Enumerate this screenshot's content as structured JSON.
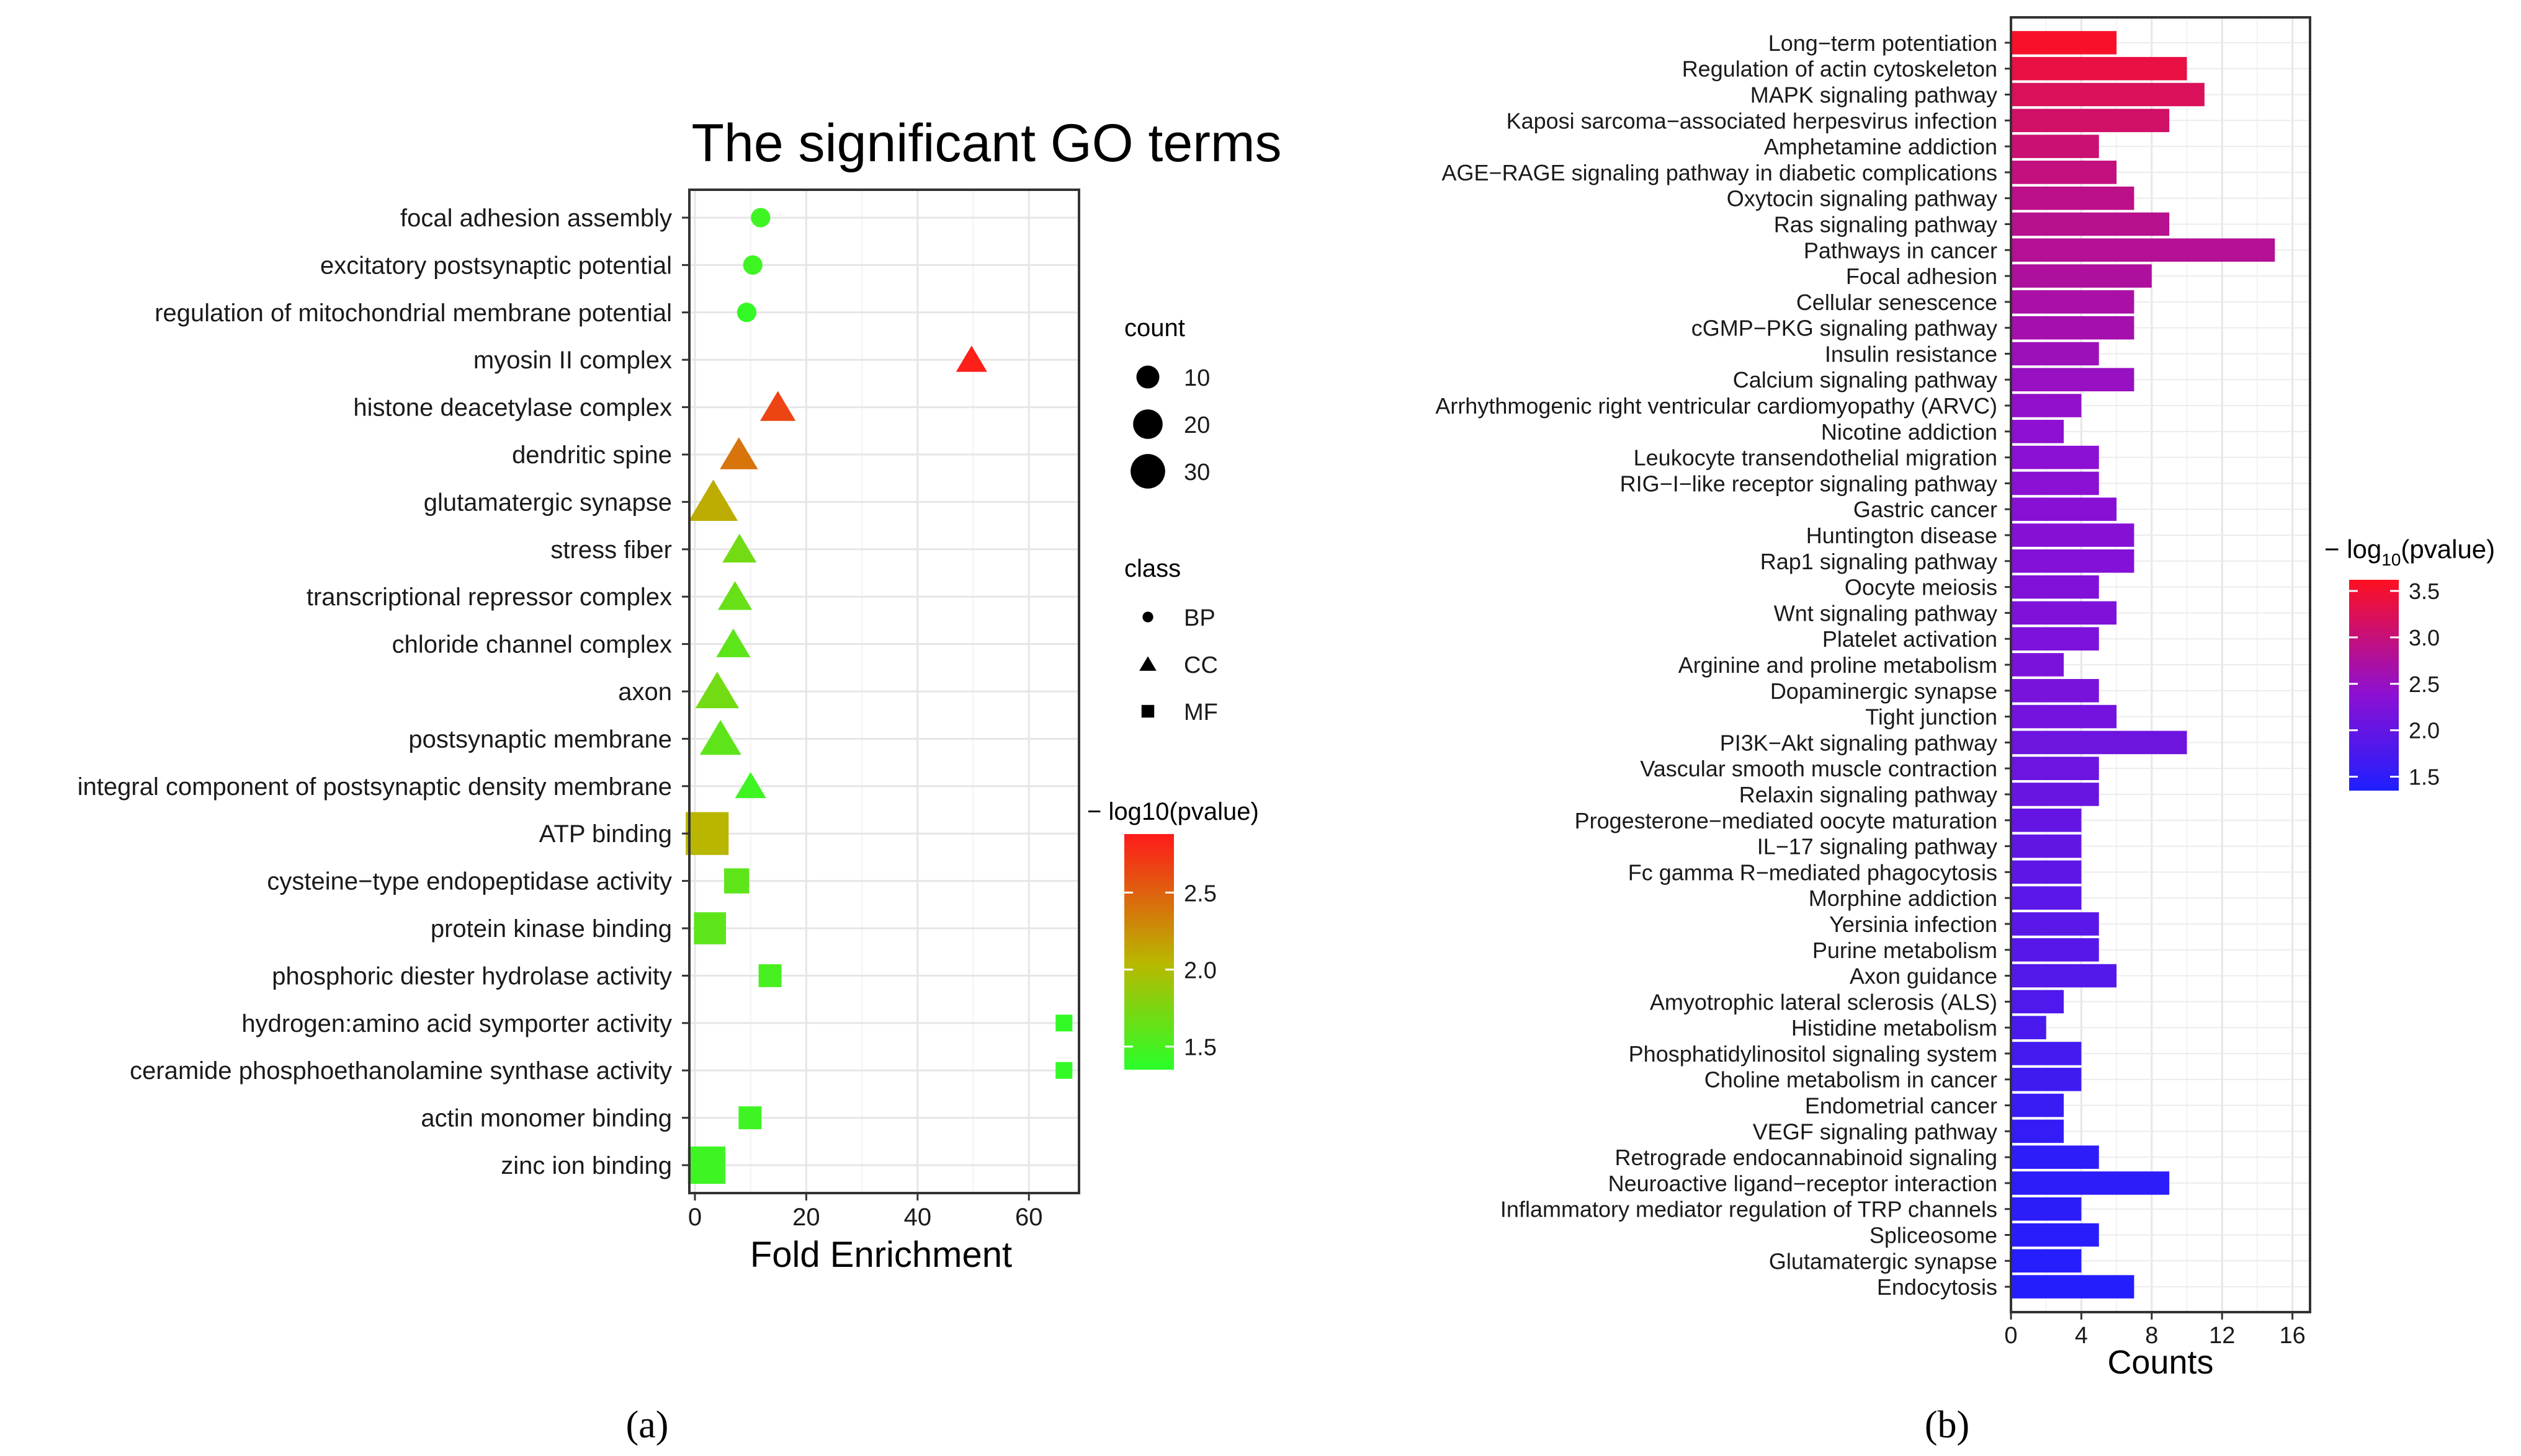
{
  "figure": {
    "panel_a_label": "(a)",
    "panel_b_label": "(b)"
  },
  "chart_data": [
    {
      "type": "scatter",
      "title": "The significant GO terms",
      "xlabel": "Fold Enrichment",
      "ylabel": "",
      "xlim": [
        -1,
        69
      ],
      "xticks": [
        0,
        20,
        40,
        60
      ],
      "grid": true,
      "categories": [
        "focal adhesion assembly",
        "excitatory postsynaptic potential",
        "regulation of mitochondrial membrane potential",
        "myosin II complex",
        "histone deacetylase complex",
        "dendritic spine",
        "glutamatergic synapse",
        "stress fiber",
        "transcriptional repressor complex",
        "chloride channel complex",
        "axon",
        "postsynaptic membrane",
        "integral component of postsynaptic density membrane",
        "ATP binding",
        "cysteine−type endopeptidase activity",
        "protein kinase binding",
        "phosphoric diester hydrolase activity",
        "hydrogen:amino acid symporter activity",
        "ceramide phosphoethanolamine synthase activity",
        "actin monomer binding",
        "zinc ion binding"
      ],
      "points": [
        {
          "term": "focal adhesion assembly",
          "fold": 11.8,
          "count": 6,
          "class": "BP",
          "log10p": 1.45
        },
        {
          "term": "excitatory postsynaptic potential",
          "fold": 10.4,
          "count": 6,
          "class": "BP",
          "log10p": 1.45
        },
        {
          "term": "regulation of mitochondrial membrane potential",
          "fold": 9.3,
          "count": 6,
          "class": "BP",
          "log10p": 1.4
        },
        {
          "term": "myosin II complex",
          "fold": 49.7,
          "count": 6,
          "class": "CC",
          "log10p": 2.85
        },
        {
          "term": "histone deacetylase complex",
          "fold": 14.9,
          "count": 9,
          "class": "CC",
          "log10p": 2.65
        },
        {
          "term": "dendritic spine",
          "fold": 7.9,
          "count": 11,
          "class": "CC",
          "log10p": 2.4
        },
        {
          "term": "glutamatergic synapse",
          "fold": 3.3,
          "count": 22,
          "class": "CC",
          "log10p": 2.1
        },
        {
          "term": "stress fiber",
          "fold": 8.0,
          "count": 8,
          "class": "CC",
          "log10p": 1.7
        },
        {
          "term": "transcriptional repressor complex",
          "fold": 7.2,
          "count": 8,
          "class": "CC",
          "log10p": 1.65
        },
        {
          "term": "chloride channel complex",
          "fold": 6.9,
          "count": 8,
          "class": "CC",
          "log10p": 1.6
        },
        {
          "term": "axon",
          "fold": 4.0,
          "count": 16,
          "class": "CC",
          "log10p": 1.7
        },
        {
          "term": "postsynaptic membrane",
          "fold": 4.6,
          "count": 14,
          "class": "CC",
          "log10p": 1.6
        },
        {
          "term": "integral component of postsynaptic density membrane",
          "fold": 10.0,
          "count": 6,
          "class": "CC",
          "log10p": 1.45
        },
        {
          "term": "ATP binding",
          "fold": 2.2,
          "count": 34,
          "class": "MF",
          "log10p": 2.05
        },
        {
          "term": "cysteine−type endopeptidase activity",
          "fold": 7.5,
          "count": 8,
          "class": "MF",
          "log10p": 1.6
        },
        {
          "term": "protein kinase binding",
          "fold": 2.7,
          "count": 16,
          "class": "MF",
          "log10p": 1.6
        },
        {
          "term": "phosphoric diester hydrolase activity",
          "fold": 13.5,
          "count": 6,
          "class": "MF",
          "log10p": 1.5
        },
        {
          "term": "hydrogen:amino acid symporter activity",
          "fold": 66.3,
          "count": 2,
          "class": "MF",
          "log10p": 1.4
        },
        {
          "term": "ceramide phosphoethanolamine synthase activity",
          "fold": 66.3,
          "count": 2,
          "class": "MF",
          "log10p": 1.4
        },
        {
          "term": "actin monomer binding",
          "fold": 9.9,
          "count": 6,
          "class": "MF",
          "log10p": 1.45
        },
        {
          "term": "zinc ion binding",
          "fold": 2.1,
          "count": 24,
          "class": "MF",
          "log10p": 1.45
        }
      ],
      "legend": {
        "position": "right",
        "size_title": "count",
        "size_entries": [
          10,
          20,
          30
        ],
        "class_title": "class",
        "class_entries": [
          "BP",
          "CC",
          "MF"
        ],
        "color_title": "− log10(pvalue)",
        "color_ticks": [
          "1.5",
          "2.0",
          "2.5"
        ],
        "color_range": [
          1.35,
          2.88
        ],
        "color_low": "#29ff29",
        "color_mid": "#b8b800",
        "color_high": "#ff1a1a"
      }
    },
    {
      "type": "bar",
      "orientation": "horizontal",
      "title": "",
      "xlabel": "Counts",
      "ylabel": "",
      "xlim": [
        0,
        17
      ],
      "xticks": [
        0,
        4,
        8,
        12,
        16
      ],
      "grid": true,
      "categories": [
        "Long−term potentiation",
        "Regulation of actin cytoskeleton",
        "MAPK signaling pathway",
        "Kaposi sarcoma−associated herpesvirus infection",
        "Amphetamine addiction",
        "AGE−RAGE signaling pathway in diabetic complications",
        "Oxytocin signaling pathway",
        "Ras signaling pathway",
        "Pathways in cancer",
        "Focal adhesion",
        "Cellular senescence",
        "cGMP−PKG signaling pathway",
        "Insulin resistance",
        "Calcium signaling pathway",
        "Arrhythmogenic right ventricular cardiomyopathy (ARVC)",
        "Nicotine addiction",
        "Leukocyte transendothelial migration",
        "RIG−I−like receptor signaling pathway",
        "Gastric cancer",
        "Huntington disease",
        "Rap1 signaling pathway",
        "Oocyte meiosis",
        "Wnt signaling pathway",
        "Platelet activation",
        "Arginine and proline metabolism",
        "Dopaminergic synapse",
        "Tight junction",
        "PI3K−Akt signaling pathway",
        "Vascular smooth muscle contraction",
        "Relaxin signaling pathway",
        "Progesterone−mediated oocyte maturation",
        "IL−17 signaling pathway",
        "Fc gamma R−mediated phagocytosis",
        "Morphine addiction",
        "Yersinia infection",
        "Purine metabolism",
        "Axon guidance",
        "Amyotrophic lateral sclerosis (ALS)",
        "Histidine metabolism",
        "Phosphatidylinositol signaling system",
        "Choline metabolism in cancer",
        "Endometrial cancer",
        "VEGF signaling pathway",
        "Retrograde endocannabinoid signaling",
        "Neuroactive ligand−receptor interaction",
        "Inflammatory mediator regulation of TRP channels",
        "Spliceosome",
        "Glutamatergic synapse",
        "Endocytosis"
      ],
      "values": [
        6,
        10,
        11,
        9,
        5,
        6,
        7,
        9,
        15,
        8,
        7,
        7,
        5,
        7,
        4,
        3,
        5,
        5,
        6,
        7,
        7,
        5,
        6,
        5,
        3,
        5,
        6,
        10,
        5,
        5,
        4,
        4,
        4,
        4,
        5,
        5,
        6,
        3,
        2,
        4,
        4,
        3,
        3,
        5,
        9,
        4,
        5,
        4,
        7
      ],
      "log10p": [
        3.55,
        3.38,
        3.22,
        3.12,
        3.05,
        2.97,
        2.9,
        2.85,
        2.8,
        2.75,
        2.7,
        2.65,
        2.55,
        2.5,
        2.45,
        2.4,
        2.38,
        2.36,
        2.34,
        2.32,
        2.3,
        2.28,
        2.26,
        2.24,
        2.22,
        2.2,
        2.15,
        2.1,
        2.08,
        2.05,
        2.0,
        1.98,
        1.95,
        1.92,
        1.9,
        1.88,
        1.85,
        1.8,
        1.75,
        1.7,
        1.65,
        1.6,
        1.55,
        1.5,
        1.48,
        1.46,
        1.44,
        1.42,
        1.4
      ],
      "legend": {
        "position": "right",
        "color_title_prefix": "− log",
        "color_title_sub": "10",
        "color_title_suffix": "(pvalue)",
        "color_ticks": [
          "3.5",
          "3.0",
          "2.5",
          "2.0",
          "1.5"
        ],
        "color_range": [
          1.35,
          3.62
        ],
        "color_low": "#1f1fff",
        "color_mid": "#8b10d4",
        "color_high": "#ff1020"
      }
    }
  ]
}
